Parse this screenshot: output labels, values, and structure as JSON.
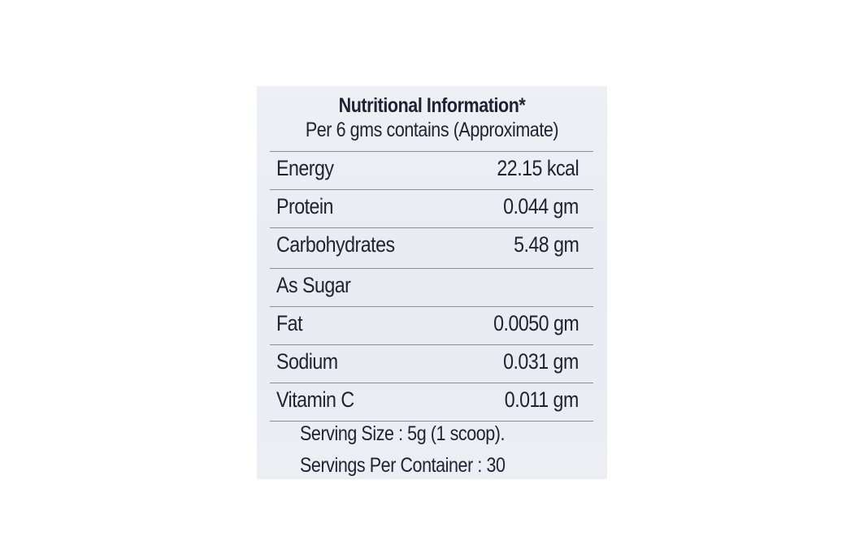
{
  "label": {
    "title": "Nutritional Information*",
    "subtitle": "Per 6 gms contains (Approximate)",
    "rows": [
      {
        "nutrient": "Energy",
        "amount": "22.15 kcal"
      },
      {
        "nutrient": "Protein",
        "amount": "0.044 gm"
      },
      {
        "nutrient": "Carbohydrates",
        "amount": "5.48 gm"
      },
      {
        "nutrient": "As Sugar",
        "amount": ""
      },
      {
        "nutrient": "Fat",
        "amount": "0.0050 gm"
      },
      {
        "nutrient": "Sodium",
        "amount": "0.031 gm"
      },
      {
        "nutrient": "Vitamin C",
        "amount": "0.011 gm"
      }
    ],
    "serving_size": "Serving Size : 5g (1 scoop).",
    "servings_per_container": "Servings Per Container : 30"
  }
}
